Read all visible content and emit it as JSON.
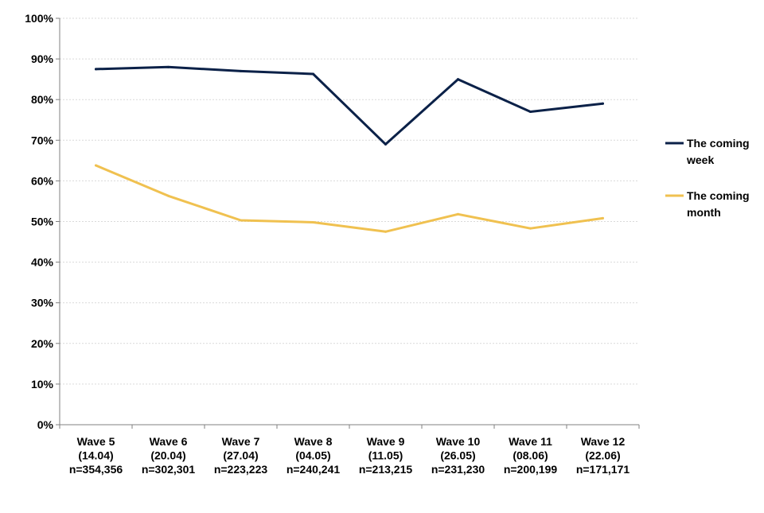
{
  "chart_data": {
    "type": "line",
    "categories": [
      [
        "Wave 5",
        "(14.04)",
        "n=354,356"
      ],
      [
        "Wave 6",
        "(20.04)",
        "n=302,301"
      ],
      [
        "Wave 7",
        "(27.04)",
        "n=223,223"
      ],
      [
        "Wave 8",
        "(04.05)",
        "n=240,241"
      ],
      [
        "Wave 9",
        "(11.05)",
        "n=213,215"
      ],
      [
        "Wave 10",
        "(26.05)",
        "n=231,230"
      ],
      [
        "Wave 11",
        "(08.06)",
        "n=200,199"
      ],
      [
        "Wave 12",
        "(22.06)",
        "n=171,171"
      ]
    ],
    "series": [
      {
        "name": "The coming week",
        "legend_lines": [
          "The coming",
          "week"
        ],
        "color": "#0b2148",
        "values": [
          87.5,
          88.0,
          87.0,
          86.3,
          69.0,
          85.0,
          77.0,
          79.0
        ]
      },
      {
        "name": "The coming month",
        "legend_lines": [
          "The coming",
          "month"
        ],
        "color": "#f0c150",
        "values": [
          63.8,
          56.3,
          50.3,
          49.8,
          47.5,
          51.8,
          48.3,
          50.8
        ]
      }
    ],
    "y_ticks": [
      "0%",
      "10%",
      "20%",
      "30%",
      "40%",
      "50%",
      "60%",
      "70%",
      "80%",
      "90%",
      "100%"
    ],
    "ylim": [
      0,
      100
    ],
    "grid": true,
    "legend_position": "right",
    "title": "",
    "xlabel": "",
    "ylabel": ""
  }
}
